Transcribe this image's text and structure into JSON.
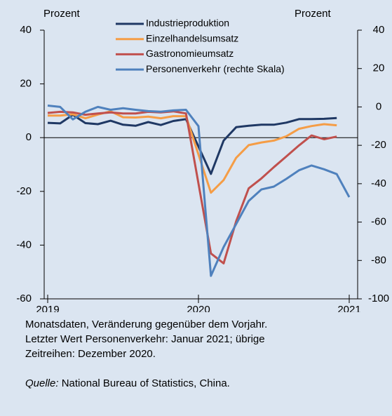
{
  "chart_data": {
    "type": "line",
    "y_label": "Prozent",
    "y2_label": "Prozent",
    "xlim": [
      2019,
      2021
    ],
    "xticks": [
      2019,
      2020,
      2021
    ],
    "ylim": [
      -60,
      40
    ],
    "yticks": [
      40,
      20,
      0,
      -20,
      -40,
      -60
    ],
    "y2lim": [
      -100,
      40
    ],
    "y2ticks": [
      40,
      20,
      0,
      -20,
      -40,
      -60,
      -80,
      -100
    ],
    "series": [
      {
        "name": "Industrieproduktion",
        "color": "#1f3864",
        "x": [
          2019.0,
          2019.083,
          2019.167,
          2019.25,
          2019.333,
          2019.417,
          2019.5,
          2019.583,
          2019.667,
          2019.75,
          2019.833,
          2019.917,
          2020.083,
          2020.167,
          2020.25,
          2020.333,
          2020.417,
          2020.5,
          2020.583,
          2020.667,
          2020.75,
          2020.833,
          2020.917
        ],
        "values": [
          5.5,
          5.3,
          8.5,
          5.4,
          5.0,
          6.3,
          4.8,
          4.4,
          5.8,
          4.7,
          6.2,
          6.9,
          -13.5,
          -1.1,
          3.9,
          4.4,
          4.8,
          4.8,
          5.6,
          6.9,
          6.9,
          7.0,
          7.3
        ]
      },
      {
        "name": "Einzelhandelsumsatz",
        "color": "#f59d46",
        "x": [
          2019.0,
          2019.083,
          2019.167,
          2019.25,
          2019.333,
          2019.417,
          2019.5,
          2019.583,
          2019.667,
          2019.75,
          2019.833,
          2019.917,
          2020.083,
          2020.167,
          2020.25,
          2020.333,
          2020.417,
          2020.5,
          2020.583,
          2020.667,
          2020.75,
          2020.833,
          2020.917
        ],
        "values": [
          8.2,
          8.2,
          8.7,
          7.2,
          8.6,
          9.8,
          7.6,
          7.5,
          7.8,
          7.2,
          8.0,
          8.0,
          -20.5,
          -15.8,
          -7.5,
          -2.8,
          -1.8,
          -1.1,
          0.5,
          3.3,
          4.3,
          5.0,
          4.6
        ]
      },
      {
        "name": "Gastronomieumsatz",
        "color": "#c0504d",
        "x": [
          2019.0,
          2019.083,
          2019.167,
          2019.25,
          2019.333,
          2019.417,
          2019.5,
          2019.583,
          2019.667,
          2019.75,
          2019.833,
          2019.917,
          2020.083,
          2020.167,
          2020.25,
          2020.333,
          2020.417,
          2020.5,
          2020.583,
          2020.667,
          2020.75,
          2020.833,
          2020.917
        ],
        "values": [
          9.2,
          9.6,
          9.4,
          8.5,
          9.0,
          9.4,
          9.0,
          9.0,
          9.6,
          9.4,
          9.8,
          9.0,
          -43.1,
          -46.8,
          -31.1,
          -18.9,
          -15.2,
          -11.0,
          -7.0,
          -2.9,
          0.8,
          -0.6,
          0.4
        ]
      },
      {
        "name": "Personenverkehr (rechte Skala)",
        "color": "#4f81bd",
        "axis": "y2",
        "x": [
          2019.0,
          2019.083,
          2019.167,
          2019.25,
          2019.333,
          2019.417,
          2019.5,
          2019.583,
          2019.667,
          2019.75,
          2019.833,
          2019.917,
          2020.0,
          2020.083,
          2020.167,
          2020.25,
          2020.333,
          2020.417,
          2020.5,
          2020.583,
          2020.667,
          2020.75,
          2020.833,
          2020.917,
          2021.0
        ],
        "values": [
          0.7,
          0,
          -6.5,
          -2.5,
          0,
          -1.5,
          -0.7,
          -1.5,
          -2.2,
          -2.5,
          -1.8,
          -1.5,
          -10,
          -88,
          -73,
          -61,
          -49,
          -43,
          -41.5,
          -37.5,
          -33,
          -30.5,
          -32.5,
          -35,
          -47
        ]
      }
    ]
  },
  "notes": [
    "Monatsdaten, Veränderung gegenüber dem Vorjahr.",
    "Letzter Wert Personenverkehr: Januar 2021; übrige",
    "Zeitreihen: Dezember 2020."
  ],
  "source": {
    "label": "Quelle:",
    "text": "National Bureau of Statistics, China."
  }
}
